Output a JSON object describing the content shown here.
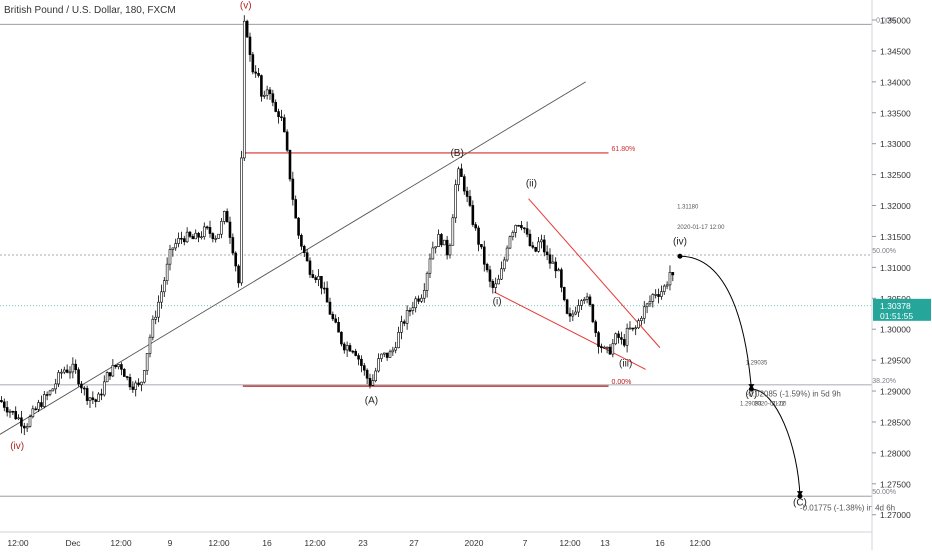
{
  "chart_data": {
    "type": "candlestick",
    "title": "British Pound / U.S. Dollar, 180, FXCM",
    "price_axis": {
      "ylim": [
        1.2695,
        1.3523
      ],
      "ticks": [
        "1.35000",
        "1.34500",
        "1.34000",
        "1.33500",
        "1.33000",
        "1.32500",
        "1.32000",
        "1.31500",
        "1.31000",
        "1.30500",
        "1.30000",
        "1.29500",
        "1.29000",
        "1.28500",
        "1.28000",
        "1.27500",
        "1.27000"
      ]
    },
    "time_axis": {
      "ticks": [
        "12:00",
        "Dec",
        "12:00",
        "9",
        "12:00",
        "16",
        "12:00",
        "23",
        "27",
        "2020",
        "7",
        "12:00",
        "13",
        "16",
        "12:00"
      ]
    },
    "last_price": {
      "value": "1.30378",
      "countdown": "01:51:55"
    },
    "series": [
      {
        "x": 0,
        "y": 1.2885
      },
      {
        "x": 5,
        "y": 1.2862
      },
      {
        "x": 9,
        "y": 1.2845
      },
      {
        "x": 14,
        "y": 1.288
      },
      {
        "x": 18,
        "y": 1.29
      },
      {
        "x": 22,
        "y": 1.2935
      },
      {
        "x": 26,
        "y": 1.2935
      },
      {
        "x": 30,
        "y": 1.2895
      },
      {
        "x": 34,
        "y": 1.2882
      },
      {
        "x": 38,
        "y": 1.293
      },
      {
        "x": 42,
        "y": 1.2945
      },
      {
        "x": 45,
        "y": 1.2915
      },
      {
        "x": 49,
        "y": 1.2905
      },
      {
        "x": 53,
        "y": 1.3
      },
      {
        "x": 57,
        "y": 1.307
      },
      {
        "x": 60,
        "y": 1.313
      },
      {
        "x": 64,
        "y": 1.315
      },
      {
        "x": 68,
        "y": 1.3145
      },
      {
        "x": 72,
        "y": 1.316
      },
      {
        "x": 76,
        "y": 1.315
      },
      {
        "x": 79,
        "y": 1.319
      },
      {
        "x": 82,
        "y": 1.312
      },
      {
        "x": 84,
        "y": 1.306
      },
      {
        "x": 85,
        "y": 1.348
      },
      {
        "x": 86,
        "y": 1.35
      },
      {
        "x": 87,
        "y": 1.346
      },
      {
        "x": 88,
        "y": 1.342
      },
      {
        "x": 90,
        "y": 1.342
      },
      {
        "x": 92,
        "y": 1.336
      },
      {
        "x": 94,
        "y": 1.34
      },
      {
        "x": 96,
        "y": 1.335
      },
      {
        "x": 98,
        "y": 1.335
      },
      {
        "x": 100,
        "y": 1.33
      },
      {
        "x": 102,
        "y": 1.323
      },
      {
        "x": 104,
        "y": 1.316
      },
      {
        "x": 106,
        "y": 1.313
      },
      {
        "x": 108,
        "y": 1.31
      },
      {
        "x": 112,
        "y": 1.308
      },
      {
        "x": 116,
        "y": 1.302
      },
      {
        "x": 120,
        "y": 1.2975
      },
      {
        "x": 124,
        "y": 1.297
      },
      {
        "x": 128,
        "y": 1.2925
      },
      {
        "x": 130,
        "y": 1.291
      },
      {
        "x": 133,
        "y": 1.2955
      },
      {
        "x": 137,
        "y": 1.296
      },
      {
        "x": 141,
        "y": 1.301
      },
      {
        "x": 145,
        "y": 1.3045
      },
      {
        "x": 148,
        "y": 1.306
      },
      {
        "x": 151,
        "y": 1.313
      },
      {
        "x": 154,
        "y": 1.315
      },
      {
        "x": 157,
        "y": 1.312
      },
      {
        "x": 159,
        "y": 1.321
      },
      {
        "x": 160,
        "y": 1.3255
      },
      {
        "x": 162,
        "y": 1.324
      },
      {
        "x": 164,
        "y": 1.32
      },
      {
        "x": 167,
        "y": 1.315
      },
      {
        "x": 170,
        "y": 1.31
      },
      {
        "x": 172,
        "y": 1.3065
      },
      {
        "x": 174,
        "y": 1.307
      },
      {
        "x": 176,
        "y": 1.31
      },
      {
        "x": 178,
        "y": 1.315
      },
      {
        "x": 181,
        "y": 1.3175
      },
      {
        "x": 183,
        "y": 1.317
      },
      {
        "x": 185,
        "y": 1.314
      },
      {
        "x": 187,
        "y": 1.312
      },
      {
        "x": 189,
        "y": 1.3145
      },
      {
        "x": 192,
        "y": 1.311
      },
      {
        "x": 195,
        "y": 1.31
      },
      {
        "x": 197,
        "y": 1.305
      },
      {
        "x": 199,
        "y": 1.301
      },
      {
        "x": 202,
        "y": 1.304
      },
      {
        "x": 204,
        "y": 1.306
      },
      {
        "x": 207,
        "y": 1.303
      },
      {
        "x": 209,
        "y": 1.2985
      },
      {
        "x": 212,
        "y": 1.296
      },
      {
        "x": 214,
        "y": 1.297
      },
      {
        "x": 216,
        "y": 1.299
      },
      {
        "x": 218,
        "y": 1.2975
      },
      {
        "x": 220,
        "y": 1.3
      },
      {
        "x": 222,
        "y": 1.2995
      },
      {
        "x": 225,
        "y": 1.303
      },
      {
        "x": 227,
        "y": 1.304
      },
      {
        "x": 229,
        "y": 1.306
      },
      {
        "x": 231,
        "y": 1.306
      },
      {
        "x": 233,
        "y": 1.307
      },
      {
        "x": 235,
        "y": 1.31
      },
      {
        "x": 236,
        "y": 1.306
      }
    ],
    "annotations": {
      "wave_labels": [
        {
          "text": "(v)",
          "x": 86,
          "y": 1.3519,
          "color": "#b22222"
        },
        {
          "text": "(iv)",
          "x": 6,
          "y": 1.2806,
          "color": "#b22222"
        },
        {
          "text": "(B)",
          "x": 160,
          "y": 1.328,
          "color": "#222222"
        },
        {
          "text": "(A)",
          "x": 130,
          "y": 1.288,
          "color": "#222222"
        },
        {
          "text": "(ii)",
          "x": 186,
          "y": 1.3231,
          "color": "#222222"
        },
        {
          "text": "(i)",
          "x": 174,
          "y": 1.304,
          "color": "#222222"
        },
        {
          "text": "(iii)",
          "x": 219,
          "y": 1.294,
          "color": "#222222"
        },
        {
          "text": "(iv)",
          "x": 238,
          "y": 1.3137,
          "color": "#222222"
        },
        {
          "text": "(v)",
          "x": 263,
          "y": 1.289,
          "color": "#222222"
        },
        {
          "text": "(C)",
          "x": 280,
          "y": 1.2715,
          "color": "#222222"
        }
      ],
      "fib_levels": [
        {
          "price": 1.3285,
          "label": "61.80%",
          "x_start": 85,
          "x_end": 213,
          "color": "#d32f2f"
        },
        {
          "price": 1.2908,
          "label": "0.00%",
          "x_start": 85,
          "x_end": 213,
          "color": "#b71c1c"
        }
      ],
      "extension_levels": [
        {
          "price": 1.3493,
          "label": "0.00%"
        },
        {
          "price": 1.312,
          "label": "50.00%"
        },
        {
          "price": 1.291,
          "label": "38.20%"
        },
        {
          "price": 1.273,
          "label": "50.00%"
        }
      ],
      "trendline": {
        "x1": 0,
        "y1": 1.283,
        "x2": 205,
        "y2": 1.34
      },
      "wedge": [
        {
          "x1": 185,
          "y1": 1.3211,
          "x2": 231,
          "y2": 1.297
        },
        {
          "x1": 173,
          "y1": 1.306,
          "x2": 226,
          "y2": 1.2935
        }
      ],
      "projection_path": [
        {
          "x": 238,
          "y": 1.3118
        },
        {
          "x": 263,
          "y": 1.2903
        },
        {
          "x": 280,
          "y": 1.273
        }
      ],
      "measure_labels": [
        {
          "text": "1.31180",
          "x": 237,
          "y": 1.3195
        },
        {
          "text": "2020-01-17 12:00",
          "x": 237,
          "y": 1.3162
        },
        {
          "text": "1.29035",
          "x": 261,
          "y": 1.2943
        },
        {
          "text": "-0.02085 (-1.59%) in 5d 9h",
          "x": 261,
          "y": 1.2891
        },
        {
          "text": "1.29093",
          "x": 259,
          "y": 1.2877
        },
        {
          "text": "2020-01-22",
          "x": 264,
          "y": 1.2877
        },
        {
          "text": "21:00",
          "x": 270,
          "y": 1.2877
        },
        {
          "text": "-0.01775 (-1.38%) in 4d 6h",
          "x": 280,
          "y": 1.2707
        }
      ]
    }
  }
}
